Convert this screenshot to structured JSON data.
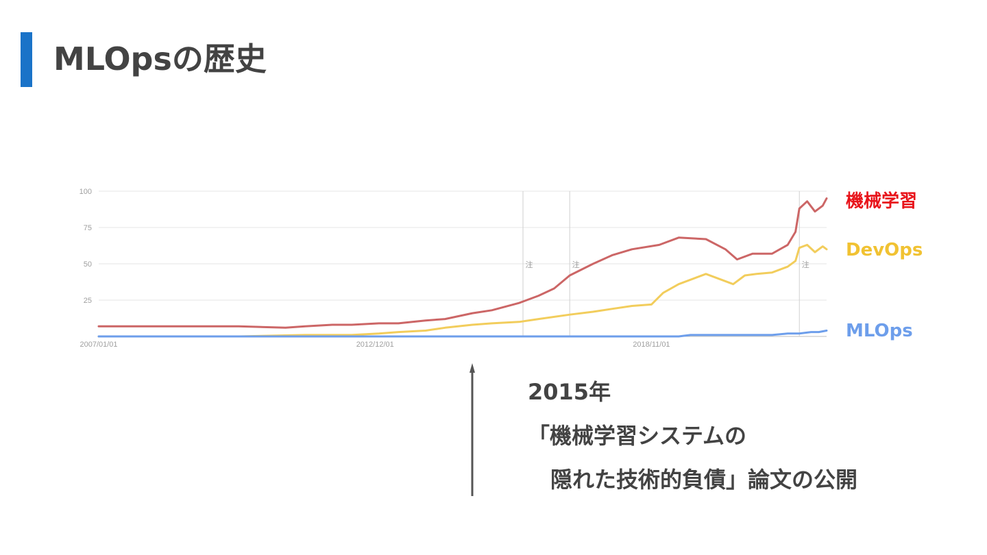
{
  "slide": {
    "title": "MLOpsの歴史",
    "accent_color": "#1a73c8"
  },
  "annotation": {
    "year": "2015年",
    "line1": "「機械学習システムの",
    "line2": "隠れた技術的負債」論文の公開",
    "arrow_date": "2015/01"
  },
  "chart_data": {
    "type": "line",
    "title": "",
    "xlabel": "",
    "ylabel": "",
    "ylim": [
      0,
      100
    ],
    "yticks": [
      100,
      75,
      50,
      25
    ],
    "x_start": "2007/01",
    "x_end": "2022/08",
    "x_ticks": [
      {
        "date": "2007/01",
        "label": "2007/01/01"
      },
      {
        "date": "2012/12",
        "label": "2012/12/01"
      },
      {
        "date": "2018/11",
        "label": "2018/11/01"
      }
    ],
    "notes": [
      {
        "date": "2016/02",
        "label": "注"
      },
      {
        "date": "2017/02",
        "label": "注"
      },
      {
        "date": "2022/01",
        "label": "注"
      }
    ],
    "grid": true,
    "legend": "right",
    "series": [
      {
        "name": "機械学習",
        "color": "#cc6666",
        "label_color": "#e8141b",
        "points": [
          [
            "2007/01",
            7
          ],
          [
            "2008/01",
            7
          ],
          [
            "2009/01",
            7
          ],
          [
            "2010/01",
            7
          ],
          [
            "2011/01",
            6
          ],
          [
            "2011/06",
            7
          ],
          [
            "2012/01",
            8
          ],
          [
            "2012/06",
            8
          ],
          [
            "2013/01",
            9
          ],
          [
            "2013/06",
            9
          ],
          [
            "2014/01",
            11
          ],
          [
            "2014/06",
            12
          ],
          [
            "2015/01",
            16
          ],
          [
            "2015/06",
            18
          ],
          [
            "2016/01",
            23
          ],
          [
            "2016/06",
            28
          ],
          [
            "2016/10",
            33
          ],
          [
            "2017/02",
            42
          ],
          [
            "2017/08",
            50
          ],
          [
            "2018/01",
            56
          ],
          [
            "2018/06",
            60
          ],
          [
            "2019/01",
            63
          ],
          [
            "2019/06",
            68
          ],
          [
            "2020/01",
            67
          ],
          [
            "2020/06",
            60
          ],
          [
            "2020/09",
            53
          ],
          [
            "2021/01",
            57
          ],
          [
            "2021/06",
            57
          ],
          [
            "2021/10",
            63
          ],
          [
            "2021/12",
            72
          ],
          [
            "2022/01",
            88
          ],
          [
            "2022/03",
            93
          ],
          [
            "2022/05",
            86
          ],
          [
            "2022/07",
            90
          ],
          [
            "2022/08",
            95
          ]
        ]
      },
      {
        "name": "DevOps",
        "color": "#f2cd5c",
        "label_color": "#f1c232",
        "points": [
          [
            "2007/01",
            0
          ],
          [
            "2010/01",
            0
          ],
          [
            "2011/06",
            1
          ],
          [
            "2012/06",
            1
          ],
          [
            "2013/01",
            2
          ],
          [
            "2013/06",
            3
          ],
          [
            "2014/01",
            4
          ],
          [
            "2014/06",
            6
          ],
          [
            "2015/01",
            8
          ],
          [
            "2015/06",
            9
          ],
          [
            "2016/01",
            10
          ],
          [
            "2016/06",
            12
          ],
          [
            "2017/02",
            15
          ],
          [
            "2017/08",
            17
          ],
          [
            "2018/01",
            19
          ],
          [
            "2018/06",
            21
          ],
          [
            "2018/11",
            22
          ],
          [
            "2019/02",
            30
          ],
          [
            "2019/06",
            36
          ],
          [
            "2019/10",
            40
          ],
          [
            "2020/01",
            43
          ],
          [
            "2020/04",
            40
          ],
          [
            "2020/08",
            36
          ],
          [
            "2020/11",
            42
          ],
          [
            "2021/02",
            43
          ],
          [
            "2021/06",
            44
          ],
          [
            "2021/10",
            48
          ],
          [
            "2021/12",
            52
          ],
          [
            "2022/01",
            61
          ],
          [
            "2022/03",
            63
          ],
          [
            "2022/05",
            58
          ],
          [
            "2022/07",
            62
          ],
          [
            "2022/08",
            60
          ]
        ]
      },
      {
        "name": "MLOps",
        "color": "#6d9eeb",
        "label_color": "#6d9eeb",
        "points": [
          [
            "2007/01",
            0
          ],
          [
            "2019/06",
            0
          ],
          [
            "2019/09",
            1
          ],
          [
            "2020/01",
            1
          ],
          [
            "2021/06",
            1
          ],
          [
            "2021/10",
            2
          ],
          [
            "2022/01",
            2
          ],
          [
            "2022/04",
            3
          ],
          [
            "2022/06",
            3
          ],
          [
            "2022/08",
            4
          ]
        ]
      }
    ]
  }
}
